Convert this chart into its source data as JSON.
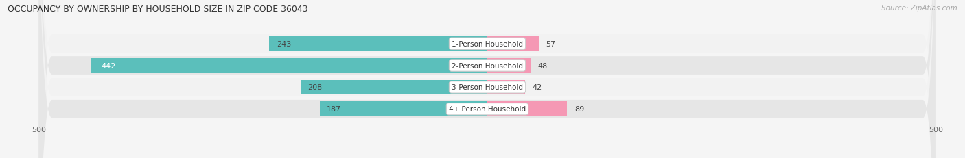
{
  "title": "OCCUPANCY BY OWNERSHIP BY HOUSEHOLD SIZE IN ZIP CODE 36043",
  "source": "Source: ZipAtlas.com",
  "categories": [
    "1-Person Household",
    "2-Person Household",
    "3-Person Household",
    "4+ Person Household"
  ],
  "owner_values": [
    243,
    442,
    208,
    187
  ],
  "renter_values": [
    57,
    48,
    42,
    89
  ],
  "owner_color": "#5bbfbb",
  "renter_color": "#f598b4",
  "axis_max": 500,
  "row_light": "#f2f2f2",
  "row_dark": "#e6e6e6",
  "bg_color": "#f5f5f5",
  "label_pill_color": "#f7f7f7",
  "label_pill_edge": "#cccccc"
}
